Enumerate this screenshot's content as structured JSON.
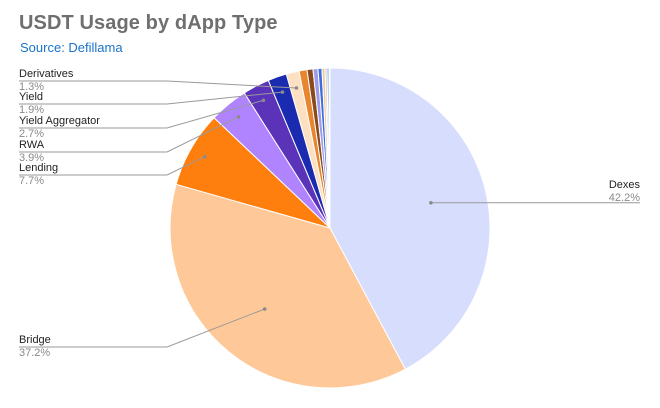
{
  "title": "USDT Usage by dApp Type",
  "subtitle": "Source: Defillama",
  "chart_data": {
    "type": "pie",
    "title": "USDT Usage by dApp Type",
    "subtitle": "Source: Defillama",
    "slices": [
      {
        "label": "Dexes",
        "value": 42.2,
        "pct_text": "42.2%",
        "color": "#d7ddfc",
        "labeled": true
      },
      {
        "label": "Bridge",
        "value": 37.2,
        "pct_text": "37.2%",
        "color": "#ffc899",
        "labeled": true
      },
      {
        "label": "Lending",
        "value": 7.7,
        "pct_text": "7.7%",
        "color": "#ff7f0e",
        "labeled": true
      },
      {
        "label": "RWA",
        "value": 3.9,
        "pct_text": "3.9%",
        "color": "#b084ff",
        "labeled": true
      },
      {
        "label": "Yield Aggregator",
        "value": 2.7,
        "pct_text": "2.7%",
        "color": "#5a33b8",
        "labeled": true
      },
      {
        "label": "Yield",
        "value": 1.9,
        "pct_text": "1.9%",
        "color": "#1a2bb0",
        "labeled": true
      },
      {
        "label": "Derivatives",
        "value": 1.3,
        "pct_text": "1.3%",
        "color": "#fde0c2",
        "labeled": true
      },
      {
        "value": 0.8,
        "color": "#e8852f",
        "labeled": false
      },
      {
        "value": 0.6,
        "color": "#8a4a1c",
        "labeled": false
      },
      {
        "value": 0.5,
        "color": "#9e9be8",
        "labeled": false
      },
      {
        "value": 0.4,
        "color": "#3d6ee0",
        "labeled": false
      },
      {
        "value": 0.3,
        "color": "#f3c99a",
        "labeled": false
      },
      {
        "value": 0.2,
        "color": "#c9c9c9",
        "labeled": false
      },
      {
        "value": 0.2,
        "color": "#7fa8f0",
        "labeled": false
      },
      {
        "value": 0.1,
        "color": "#f6e7b0",
        "labeled": false
      }
    ],
    "start_angle": "12 o'clock",
    "direction": "clockwise",
    "legend": "none"
  }
}
